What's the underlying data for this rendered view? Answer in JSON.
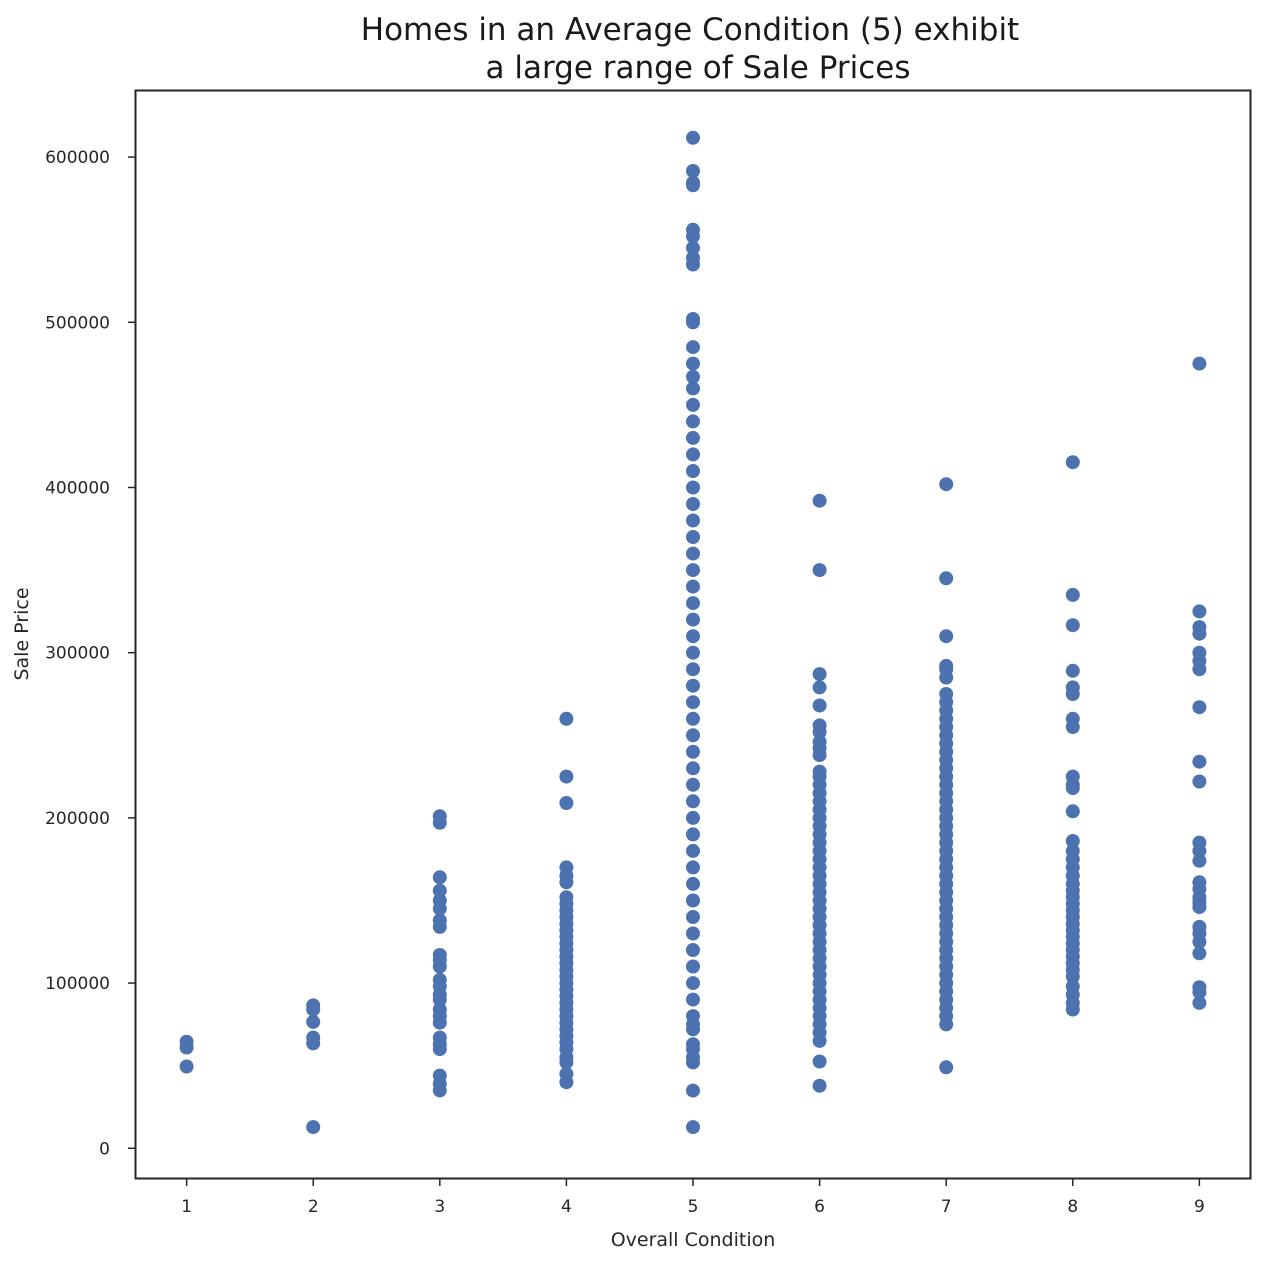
{
  "chart_data": {
    "type": "scatter",
    "title_lines": [
      "Homes in an Average Condition (5) exhibit",
      "a large range of Sale Prices"
    ],
    "xlabel": "Overall Condition",
    "ylabel": "Sale Price",
    "x_ticks": [
      1,
      2,
      3,
      4,
      5,
      6,
      7,
      8,
      9
    ],
    "y_ticks": [
      0,
      100000,
      200000,
      300000,
      400000,
      500000,
      600000
    ],
    "xlim": [
      0.6,
      9.4
    ],
    "ylim": [
      -18000,
      640000
    ],
    "grid": false,
    "marker_color": "#4c72b0",
    "points": [
      {
        "x": 1,
        "y": [
          49500,
          61000,
          64500
        ]
      },
      {
        "x": 2,
        "y": [
          12789,
          63500,
          67000,
          76500,
          84000,
          86500
        ]
      },
      {
        "x": 3,
        "y": [
          35000,
          39000,
          44000,
          60000,
          63000,
          67000,
          76000,
          80000,
          84000,
          90000,
          93000,
          98000,
          102000,
          110000,
          114000,
          117000,
          134000,
          138000,
          145000,
          150000,
          156000,
          164000,
          197000,
          201000
        ]
      },
      {
        "x": 4,
        "y": [
          40000,
          45000,
          52000,
          55000,
          60000,
          64000,
          68000,
          72000,
          76000,
          80000,
          84000,
          88000,
          92000,
          96000,
          100000,
          104000,
          108000,
          112000,
          116000,
          120000,
          124000,
          128000,
          132000,
          136000,
          140000,
          144000,
          148000,
          152000,
          161000,
          165000,
          170000,
          209000,
          225000,
          260000
        ]
      },
      {
        "x": 5,
        "y": [
          12789,
          34900,
          52000,
          55000,
          60000,
          63000,
          72000,
          75000,
          80000,
          90000,
          100000,
          110000,
          120000,
          130000,
          140000,
          150000,
          160000,
          170000,
          180000,
          190000,
          200000,
          210000,
          220000,
          230000,
          240000,
          250000,
          260000,
          270000,
          280000,
          290000,
          300000,
          310000,
          320000,
          330000,
          340000,
          350000,
          360000,
          370000,
          380000,
          390000,
          400000,
          410000,
          420000,
          430000,
          440000,
          450000,
          460000,
          467000,
          475000,
          485000,
          500000,
          502000,
          535000,
          539000,
          545000,
          552000,
          556000,
          582933,
          584500,
          591587,
          611657
        ]
      },
      {
        "x": 6,
        "y": [
          37900,
          52500,
          65000,
          70000,
          75000,
          80000,
          85000,
          90000,
          95000,
          100000,
          105000,
          110000,
          115000,
          120000,
          125000,
          130000,
          135000,
          140000,
          145000,
          150000,
          155000,
          160000,
          165000,
          170000,
          175000,
          180000,
          185000,
          190000,
          195000,
          200000,
          205000,
          210000,
          215000,
          220000,
          225000,
          228000,
          238000,
          242000,
          246000,
          252000,
          256000,
          268000,
          279000,
          287000,
          350000,
          392000
        ]
      },
      {
        "x": 7,
        "y": [
          49000,
          75000,
          80000,
          85000,
          90000,
          95000,
          100000,
          105000,
          110000,
          115000,
          120000,
          125000,
          130000,
          135000,
          140000,
          145000,
          150000,
          155000,
          160000,
          165000,
          170000,
          175000,
          180000,
          185000,
          190000,
          195000,
          200000,
          205000,
          210000,
          215000,
          220000,
          225000,
          230000,
          235000,
          240000,
          245000,
          250000,
          255000,
          260000,
          265000,
          270000,
          275000,
          285000,
          290000,
          292000,
          310000,
          345000,
          402000
        ]
      },
      {
        "x": 8,
        "y": [
          84000,
          88000,
          93000,
          98000,
          104000,
          108000,
          112000,
          116000,
          120000,
          124000,
          128000,
          132000,
          136000,
          140000,
          144000,
          148000,
          152000,
          156000,
          160000,
          165000,
          170000,
          175000,
          180000,
          186000,
          204000,
          218000,
          220000,
          225000,
          255000,
          260000,
          275000,
          279000,
          289000,
          316600,
          335000,
          415298
        ]
      },
      {
        "x": 9,
        "y": [
          88000,
          94500,
          97500,
          118000,
          125000,
          130000,
          134000,
          146000,
          149000,
          152000,
          157000,
          161000,
          174000,
          180000,
          185000,
          222000,
          234000,
          267000,
          290000,
          295000,
          300000,
          311500,
          315500,
          325000,
          475000
        ]
      }
    ]
  }
}
